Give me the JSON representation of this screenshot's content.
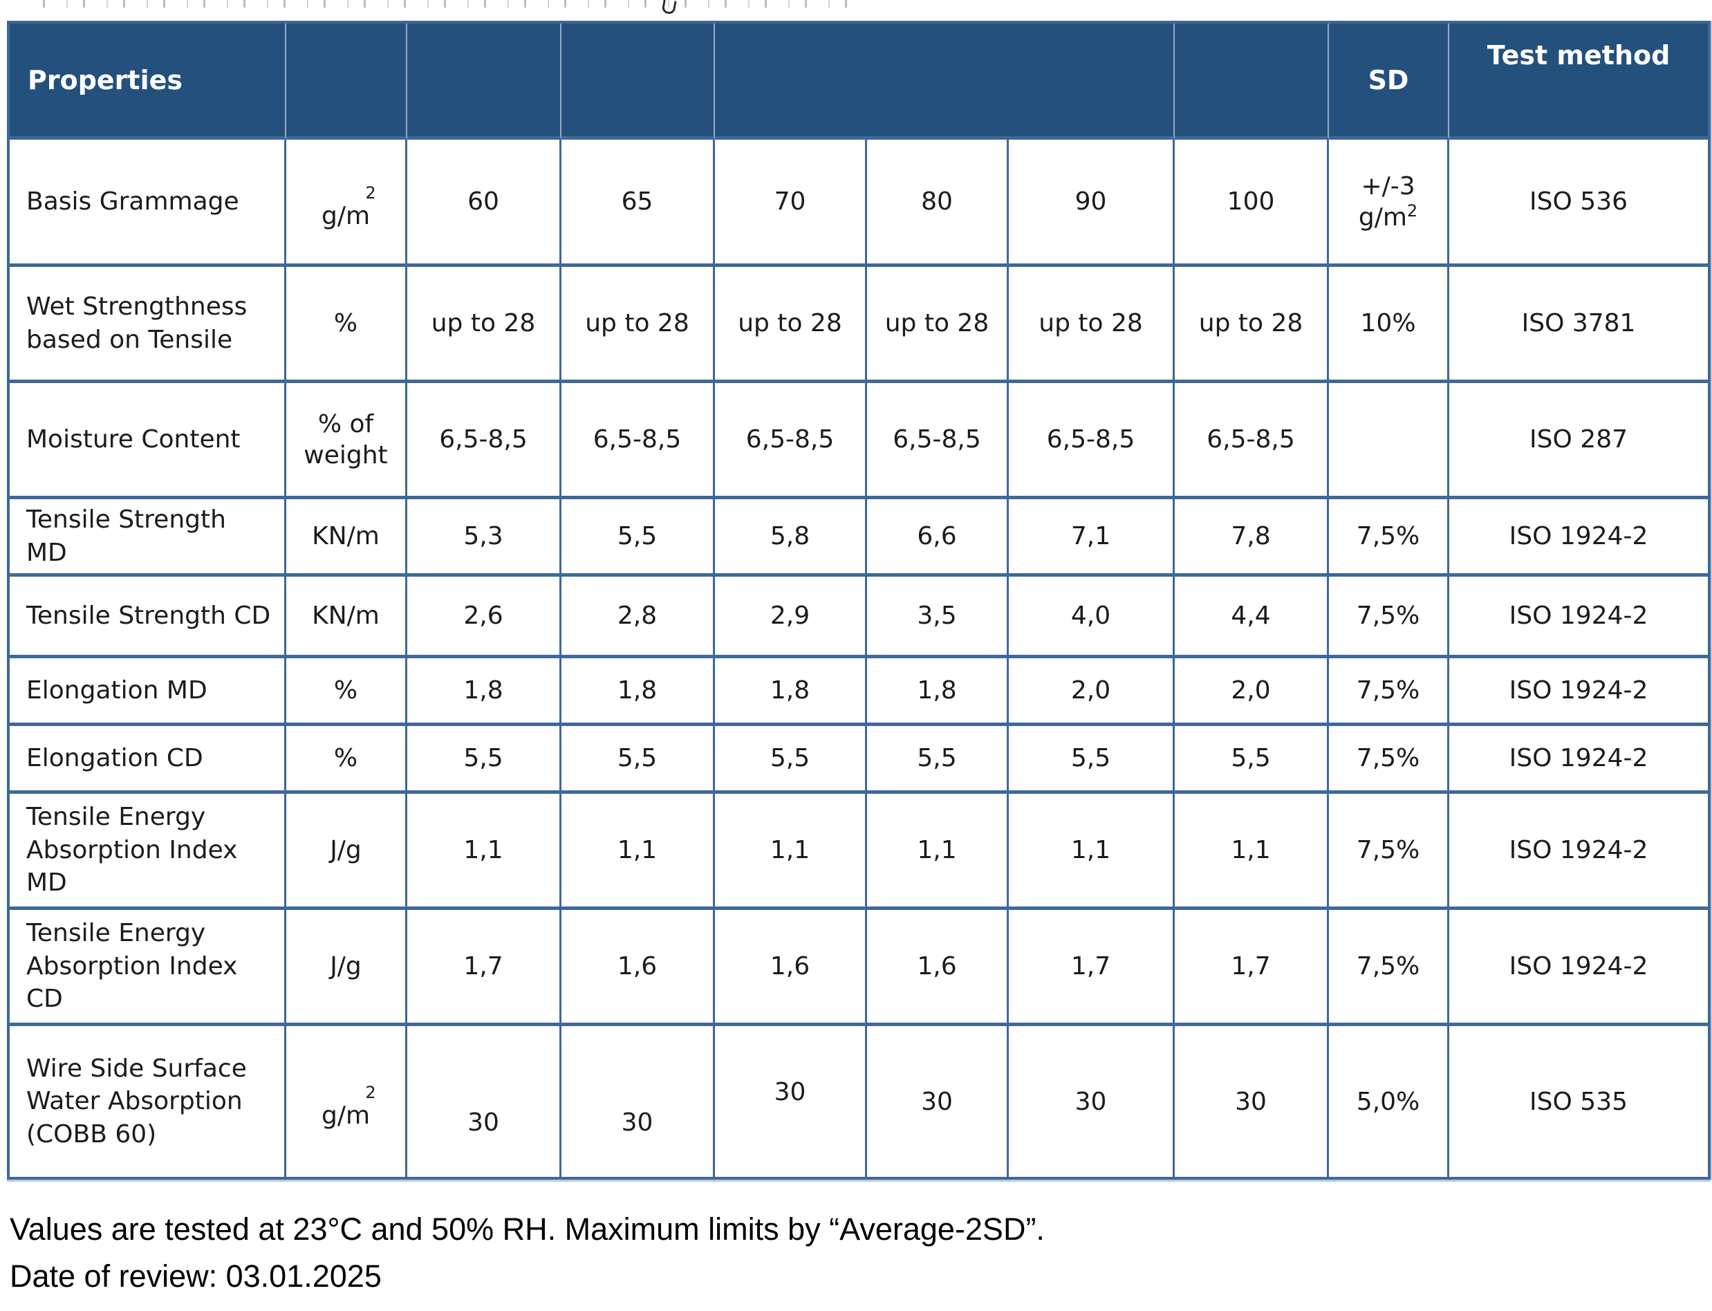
{
  "colors": {
    "header_bg": "#24507e",
    "header_text": "#ffffff",
    "grid_border": "#3d6899",
    "body_text": "#1b1b1b"
  },
  "header": {
    "properties": "Properties",
    "sd": "SD",
    "test_method": "Test method"
  },
  "rows": [
    {
      "property": "Basis Grammage",
      "unit_sup": "2",
      "unit_base": "g/m",
      "values": [
        "60",
        "65",
        "70",
        "80",
        "90",
        "100"
      ],
      "sd_line1": "+/-3",
      "sd_base": "g/m",
      "sd_sup": "2",
      "test_method": "ISO 536"
    },
    {
      "property": "Wet Strengthness based on Tensile",
      "unit": "%",
      "values": [
        "up to 28",
        "up to 28",
        "up to 28",
        "up to 28",
        "up to 28",
        "up to 28"
      ],
      "sd": "10%",
      "test_method": "ISO 3781"
    },
    {
      "property": "Moisture Content",
      "unit": "% of weight",
      "values": [
        "6,5-8,5",
        "6,5-8,5",
        "6,5-8,5",
        "6,5-8,5",
        "6,5-8,5",
        "6,5-8,5"
      ],
      "sd": "",
      "test_method": "ISO 287"
    },
    {
      "property": "Tensile Strength MD",
      "unit": "KN/m",
      "values": [
        "5,3",
        "5,5",
        "5,8",
        "6,6",
        "7,1",
        "7,8"
      ],
      "sd": "7,5%",
      "test_method": "ISO 1924-2"
    },
    {
      "property": "Tensile Strength CD",
      "unit": "KN/m",
      "values": [
        "2,6",
        "2,8",
        "2,9",
        "3,5",
        "4,0",
        "4,4"
      ],
      "sd": "7,5%",
      "test_method": "ISO 1924-2"
    },
    {
      "property": "Elongation MD",
      "unit": "%",
      "values": [
        "1,8",
        "1,8",
        "1,8",
        "1,8",
        "2,0",
        "2,0"
      ],
      "sd": "7,5%",
      "test_method": "ISO 1924-2"
    },
    {
      "property": "Elongation CD",
      "unit": "%",
      "values": [
        "5,5",
        "5,5",
        "5,5",
        "5,5",
        "5,5",
        "5,5"
      ],
      "sd": "7,5%",
      "test_method": "ISO 1924-2"
    },
    {
      "property": "Tensile Energy Absorption Index MD",
      "unit": "J/g",
      "values": [
        "1,1",
        "1,1",
        "1,1",
        "1,1",
        "1,1",
        "1,1"
      ],
      "sd": "7,5%",
      "test_method": "ISO 1924-2"
    },
    {
      "property": "Tensile Energy Absorption Index CD",
      "unit": "J/g",
      "values": [
        "1,7",
        "1,6",
        "1,6",
        "1,6",
        "1,7",
        "1,7"
      ],
      "sd": "7,5%",
      "test_method": "ISO 1924-2"
    },
    {
      "property": "Wire Side Surface Water Absorption (COBB 60)",
      "unit_sup": "2",
      "unit_base": "g/m",
      "values": [
        "30",
        "30",
        "30",
        "30",
        "30",
        "30"
      ],
      "sd": "5,0%",
      "test_method": "ISO 535"
    }
  ],
  "footer": {
    "line1": "Values are tested at 23°C and 50% RH. Maximum limits by “Average-2SD”.",
    "line2": "Date of review: 03.01.2025"
  }
}
